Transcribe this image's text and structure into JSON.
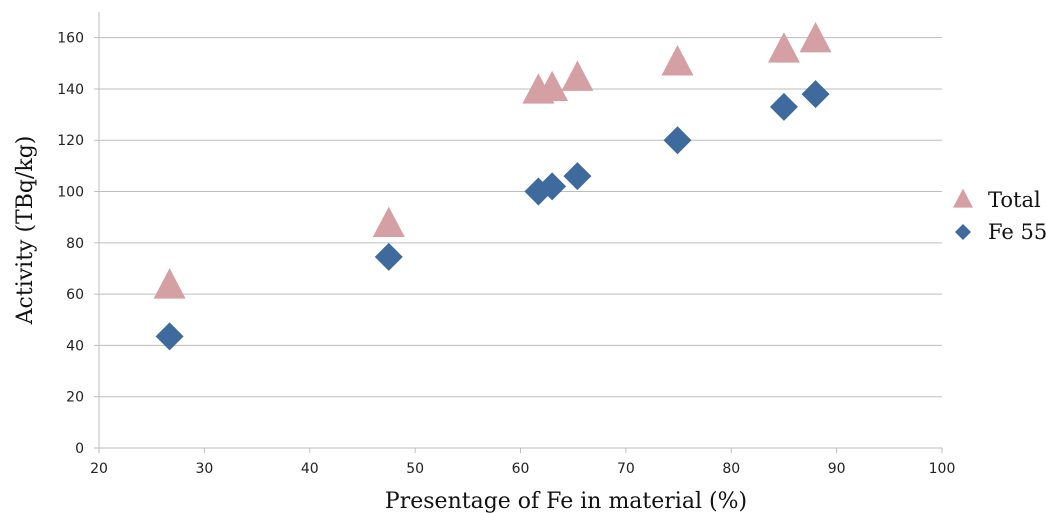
{
  "chart_data": {
    "type": "scatter",
    "title": "",
    "xlabel": "Presentage of Fe in material (%)",
    "ylabel": "Activity (TBq/kg)",
    "xlim": [
      20,
      100
    ],
    "ylim": [
      0,
      170
    ],
    "xticks": [
      20,
      30,
      40,
      50,
      60,
      70,
      80,
      90,
      100
    ],
    "yticks": [
      0,
      20,
      40,
      60,
      80,
      100,
      120,
      140,
      160
    ],
    "grid": "horizontal",
    "legend_position": "right",
    "series": [
      {
        "name": "Total",
        "marker": "triangle",
        "color": "#d4a0a3",
        "points": [
          {
            "x": 26.7,
            "y": 63
          },
          {
            "x": 47.5,
            "y": 87
          },
          {
            "x": 61.7,
            "y": 139
          },
          {
            "x": 63.0,
            "y": 140
          },
          {
            "x": 65.4,
            "y": 144
          },
          {
            "x": 74.9,
            "y": 150
          },
          {
            "x": 85.0,
            "y": 155
          },
          {
            "x": 88.0,
            "y": 159
          }
        ]
      },
      {
        "name": "Fe 55",
        "marker": "diamond",
        "color": "#3e6a9e",
        "points": [
          {
            "x": 26.7,
            "y": 43.5
          },
          {
            "x": 47.5,
            "y": 74.5
          },
          {
            "x": 61.7,
            "y": 100
          },
          {
            "x": 63.0,
            "y": 102
          },
          {
            "x": 65.4,
            "y": 106
          },
          {
            "x": 74.9,
            "y": 120
          },
          {
            "x": 85.0,
            "y": 133
          },
          {
            "x": 88.0,
            "y": 138
          }
        ]
      }
    ]
  }
}
